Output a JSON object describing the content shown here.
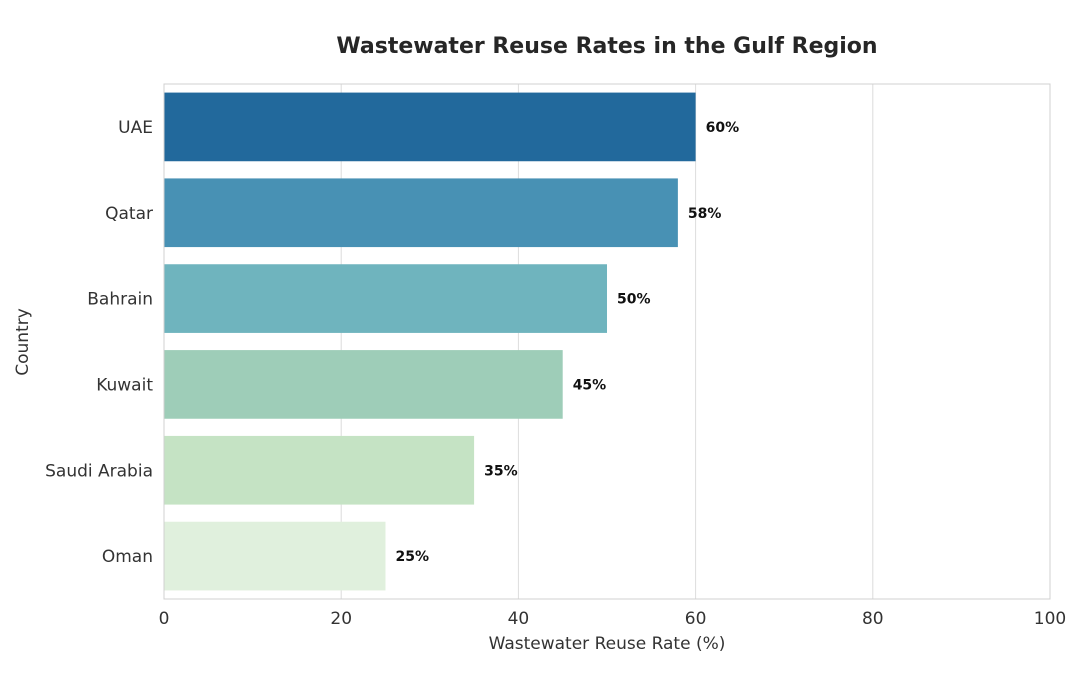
{
  "chart_data": {
    "type": "bar",
    "orientation": "horizontal",
    "title": "Wastewater Reuse Rates in the Gulf Region",
    "xlabel": "Wastewater Reuse Rate (%)",
    "ylabel": "Country",
    "categories": [
      "UAE",
      "Qatar",
      "Bahrain",
      "Kuwait",
      "Saudi Arabia",
      "Oman"
    ],
    "values": [
      60,
      58,
      50,
      45,
      35,
      25
    ],
    "value_labels": [
      "60%",
      "58%",
      "50%",
      "45%",
      "35%",
      "25%"
    ],
    "colors": [
      "#22699c",
      "#4891b4",
      "#6fb4be",
      "#9ecdb8",
      "#c5e3c4",
      "#e0f0dd"
    ],
    "xlim": [
      0,
      100
    ],
    "xticks": [
      0,
      20,
      40,
      60,
      80,
      100
    ],
    "xtick_labels": [
      "0",
      "20",
      "40",
      "60",
      "80",
      "100"
    ],
    "grid": true,
    "grid_axis": "x",
    "grid_color": "#dcdcdc",
    "frame_color": "#d0d0d0"
  }
}
